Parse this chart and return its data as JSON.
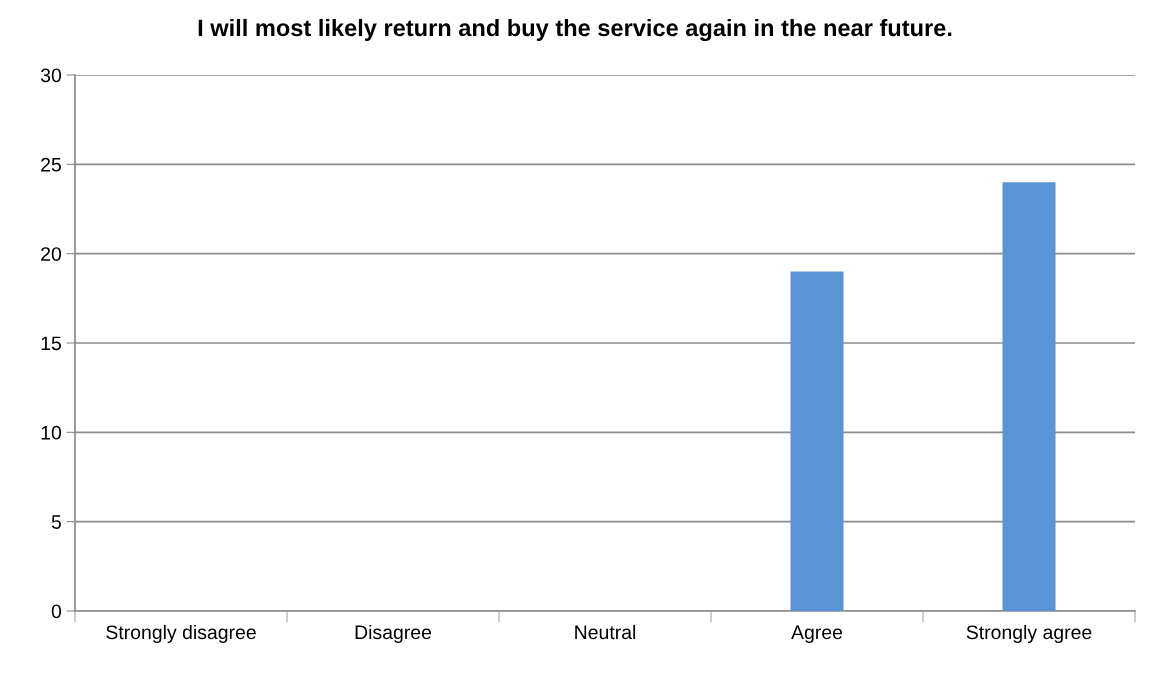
{
  "chart_data": {
    "type": "bar",
    "title": "I will most likely return and buy the service again in the near future.",
    "categories": [
      "Strongly disagree",
      "Disagree",
      "Neutral",
      "Agree",
      "Strongly agree"
    ],
    "values": [
      0,
      0,
      0,
      19,
      24
    ],
    "color": "#5b94d6",
    "ylim": [
      0,
      30
    ],
    "yticks": [
      0,
      5,
      10,
      15,
      20,
      25,
      30
    ],
    "grid": "y",
    "legend": false
  }
}
